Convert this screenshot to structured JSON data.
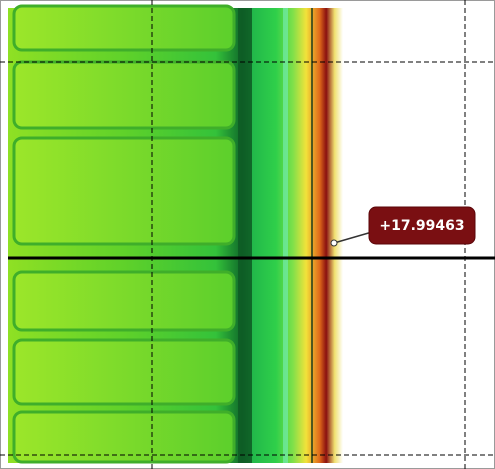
{
  "annotation": {
    "label": "+17.99463"
  }
}
